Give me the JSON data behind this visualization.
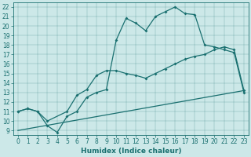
{
  "xlabel": "Humidex (Indice chaleur)",
  "xlim": [
    -0.5,
    23.5
  ],
  "ylim": [
    8.5,
    22.5
  ],
  "yticks": [
    9,
    10,
    11,
    12,
    13,
    14,
    15,
    16,
    17,
    18,
    19,
    20,
    21,
    22
  ],
  "xticks": [
    0,
    1,
    2,
    3,
    4,
    5,
    6,
    7,
    8,
    9,
    10,
    11,
    12,
    13,
    14,
    15,
    16,
    17,
    18,
    19,
    20,
    21,
    22,
    23
  ],
  "bg_color": "#cce8e8",
  "line_color": "#1a7070",
  "curve1_x": [
    0,
    1,
    2,
    3,
    4,
    5,
    6,
    7,
    8,
    9,
    10,
    11,
    12,
    13,
    14,
    15,
    16,
    17,
    18,
    19,
    20,
    21,
    22,
    23
  ],
  "curve1_y": [
    11.0,
    11.3,
    11.0,
    9.5,
    8.8,
    10.5,
    11.0,
    12.5,
    13.0,
    13.3,
    18.5,
    20.8,
    20.3,
    19.5,
    21.0,
    21.5,
    22.0,
    21.3,
    21.2,
    18.0,
    17.8,
    17.5,
    17.2,
    13.0
  ],
  "curve2_x": [
    0,
    1,
    2,
    3,
    5,
    6,
    7,
    8,
    9,
    10,
    11,
    12,
    13,
    14,
    15,
    16,
    17,
    18,
    19,
    20,
    21,
    22,
    23
  ],
  "curve2_y": [
    11.0,
    11.3,
    11.0,
    10.0,
    11.0,
    12.7,
    13.3,
    14.8,
    15.3,
    15.3,
    15.0,
    14.8,
    14.5,
    15.0,
    15.5,
    16.0,
    16.5,
    16.8,
    17.0,
    17.5,
    17.8,
    17.5,
    13.2
  ],
  "curve3_x": [
    0,
    23
  ],
  "curve3_y": [
    9.0,
    13.2
  ],
  "tick_fontsize": 5.5,
  "xlabel_fontsize": 6.5
}
